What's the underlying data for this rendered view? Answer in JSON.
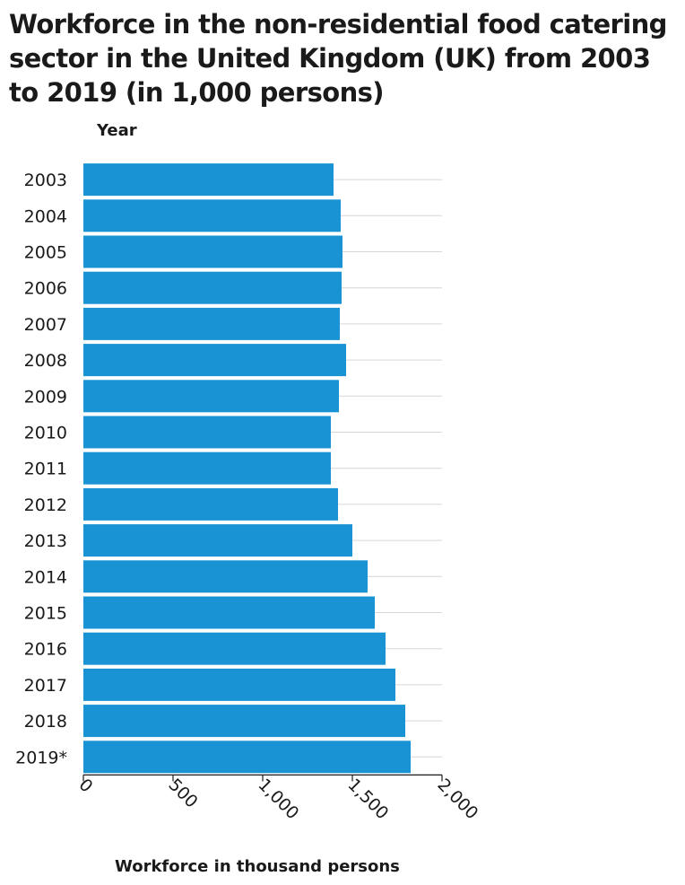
{
  "chart_data": {
    "type": "bar",
    "orientation": "horizontal",
    "title": "Workforce in the non-residential food catering sector in the United Kingdom (UK) from 2003 to 2019 (in 1,000 persons)",
    "xlabel": "Workforce in thousand persons",
    "ylabel": "Year",
    "categories": [
      "2003",
      "2004",
      "2005",
      "2006",
      "2007",
      "2008",
      "2009",
      "2010",
      "2011",
      "2012",
      "2013",
      "2014",
      "2015",
      "2016",
      "2017",
      "2018",
      "2019*"
    ],
    "values": [
      1395,
      1435,
      1445,
      1440,
      1430,
      1465,
      1425,
      1380,
      1380,
      1420,
      1500,
      1585,
      1625,
      1685,
      1740,
      1795,
      1825
    ],
    "xlim": [
      0,
      2000
    ],
    "xticks": [
      0,
      500,
      1000,
      1500,
      2000
    ],
    "xtick_labels": [
      "0",
      "500",
      "1,000",
      "1,500",
      "2,000"
    ],
    "bar_color": "#1a93d5",
    "grid": true
  }
}
